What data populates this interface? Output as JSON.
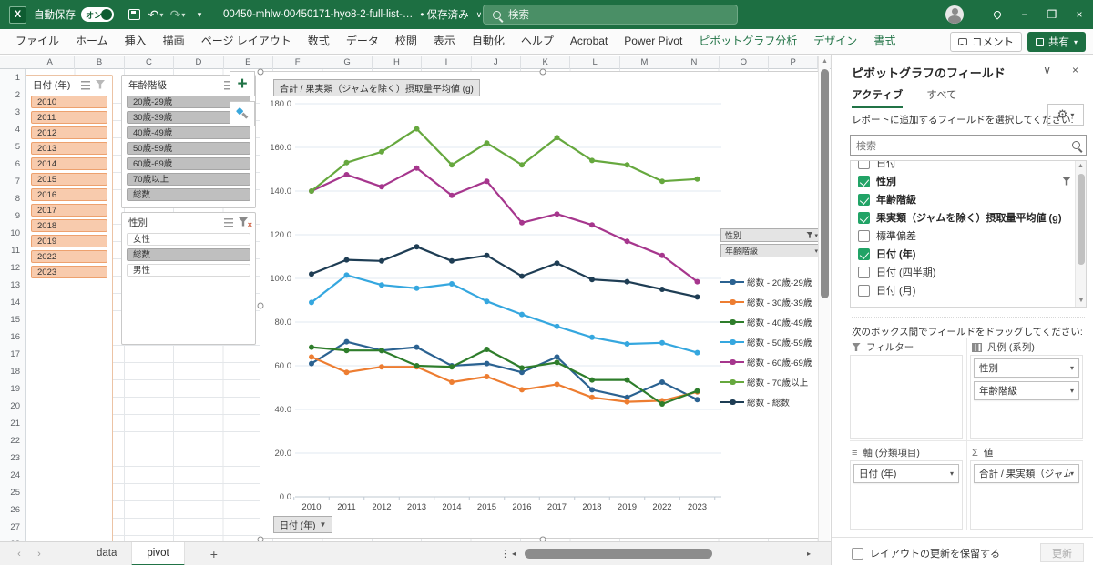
{
  "colors": {
    "titlebar_green": "#1D6F42",
    "contextual_green": "#217346",
    "slicer_selected_peach": "#F8CBAD",
    "slicer_selected_grey": "#BFBFBF",
    "checkbox_green": "#21A366"
  },
  "titlebar": {
    "autosave_label": "自動保存",
    "autosave_state": "オン",
    "filename": "00450-mhlw-00450171-hyo8-2-full-list-…",
    "saved_status": "• 保存済み",
    "search_placeholder": "検索"
  },
  "ribbon": {
    "tabs": [
      "ファイル",
      "ホーム",
      "挿入",
      "描画",
      "ページ レイアウト",
      "数式",
      "データ",
      "校閲",
      "表示",
      "自動化",
      "ヘルプ",
      "Acrobat",
      "Power Pivot"
    ],
    "contextual_tabs": [
      "ピボットグラフ分析",
      "デザイン",
      "書式"
    ],
    "comment_label": "コメント",
    "share_label": "共有"
  },
  "sheet": {
    "columns": [
      "A",
      "B",
      "C",
      "D",
      "E",
      "F",
      "G",
      "H",
      "I",
      "J",
      "K",
      "L",
      "M",
      "N",
      "O",
      "P"
    ],
    "row_count": 28
  },
  "slicers": [
    {
      "title": "日付 (年)",
      "style": "peach",
      "items": [
        {
          "label": "2010",
          "selected": true
        },
        {
          "label": "2011",
          "selected": true
        },
        {
          "label": "2012",
          "selected": true
        },
        {
          "label": "2013",
          "selected": true
        },
        {
          "label": "2014",
          "selected": true
        },
        {
          "label": "2015",
          "selected": true
        },
        {
          "label": "2016",
          "selected": true
        },
        {
          "label": "2017",
          "selected": true
        },
        {
          "label": "2018",
          "selected": true
        },
        {
          "label": "2019",
          "selected": true
        },
        {
          "label": "2022",
          "selected": true
        },
        {
          "label": "2023",
          "selected": true
        }
      ]
    },
    {
      "title": "年齢階級",
      "style": "grey",
      "items": [
        {
          "label": "20歳-29歳",
          "selected": true
        },
        {
          "label": "30歳-39歳",
          "selected": true
        },
        {
          "label": "40歳-49歳",
          "selected": true
        },
        {
          "label": "50歳-59歳",
          "selected": true
        },
        {
          "label": "60歳-69歳",
          "selected": true
        },
        {
          "label": "70歳以上",
          "selected": true
        },
        {
          "label": "総数",
          "selected": true
        }
      ]
    },
    {
      "title": "性別",
      "style": "grey",
      "filtered": true,
      "items": [
        {
          "label": "女性",
          "selected": false
        },
        {
          "label": "総数",
          "selected": true
        },
        {
          "label": "男性",
          "selected": false
        }
      ]
    }
  ],
  "chart": {
    "value_button": "合計 / 果実類（ジャムを除く）摂取量平均値 (g)",
    "axis_button": "日付 (年)",
    "legend_field_buttons": [
      "性別",
      "年齢階級"
    ]
  },
  "chart_data": {
    "type": "line",
    "title": "合計 / 果実類（ジャムを除く）摂取量平均値 (g)",
    "xlabel": "日付 (年)",
    "ylabel": "摂取量平均値 (g)",
    "x": [
      "2010",
      "2011",
      "2012",
      "2013",
      "2014",
      "2015",
      "2016",
      "2017",
      "2018",
      "2019",
      "2022",
      "2023"
    ],
    "ylim": [
      0,
      180
    ],
    "yticks": [
      0,
      20,
      40,
      60,
      80,
      100,
      120,
      140,
      160,
      180
    ],
    "grid": true,
    "legend_position": "right",
    "series": [
      {
        "name": "総数 - 20歳-29歳",
        "color": "#2B6291",
        "values": [
          61,
          71,
          67,
          68.5,
          60,
          61,
          57,
          64,
          49,
          45.5,
          52.5,
          44.5
        ]
      },
      {
        "name": "総数 - 30歳-39歳",
        "color": "#ED7D31",
        "values": [
          64,
          57,
          59.5,
          59.5,
          52.5,
          55,
          49,
          51.5,
          45.5,
          43.5,
          44,
          48
        ]
      },
      {
        "name": "総数 - 40歳-49歳",
        "color": "#2E7D2B",
        "values": [
          68.5,
          67,
          67,
          60,
          59.5,
          67.5,
          59,
          61.5,
          53.5,
          53.5,
          42.5,
          48.5
        ]
      },
      {
        "name": "総数 - 50歳-59歳",
        "color": "#35A7DF",
        "values": [
          89,
          101.5,
          97,
          95.5,
          97.5,
          89.5,
          83.5,
          78,
          73,
          70,
          70.5,
          66
        ]
      },
      {
        "name": "総数 - 60歳-69歳",
        "color": "#A6368D",
        "values": [
          140,
          147.5,
          142,
          150.5,
          138,
          144.5,
          125.5,
          129.5,
          124.5,
          117,
          110.5,
          98.5
        ]
      },
      {
        "name": "総数 - 70歳以上",
        "color": "#66A83E",
        "values": [
          140,
          153,
          158,
          168.5,
          152,
          162,
          152,
          164.5,
          154,
          152,
          144.5,
          145.5
        ]
      },
      {
        "name": "総数 - 総数",
        "color": "#1E3D54",
        "values": [
          102,
          108.5,
          108,
          114.5,
          108,
          110.5,
          101,
          107,
          99.5,
          98.5,
          95,
          91.5
        ]
      }
    ]
  },
  "fields_pane": {
    "title": "ピボットグラフのフィールド",
    "tabs": [
      {
        "label": "アクティブ",
        "active": true
      },
      {
        "label": "すべて",
        "active": false
      }
    ],
    "instruction": "レポートに追加するフィールドを選択してください:",
    "search_placeholder": "検索",
    "fields": [
      {
        "label": "日付",
        "checked": false,
        "clipped": true
      },
      {
        "label": "性別",
        "checked": true,
        "filtered": true
      },
      {
        "label": "年齢階級",
        "checked": true
      },
      {
        "label": "果実類（ジャムを除く）摂取量平均値 (g)",
        "checked": true
      },
      {
        "label": "標準偏差",
        "checked": false
      },
      {
        "label": "日付 (年)",
        "checked": true
      },
      {
        "label": "日付 (四半期)",
        "checked": false
      },
      {
        "label": "日付 (月)",
        "checked": false
      }
    ],
    "drag_instruction": "次のボックス間でフィールドをドラッグしてください:",
    "areas": {
      "filters": {
        "label": "フィルター",
        "items": []
      },
      "legend": {
        "label": "凡例 (系列)",
        "items": [
          "性別",
          "年齢階級"
        ]
      },
      "axis": {
        "label": "軸 (分類項目)",
        "items": [
          "日付 (年)"
        ]
      },
      "values": {
        "label": "値",
        "items": [
          "合計 / 果実類（ジャムを..."
        ]
      }
    },
    "defer_label": "レイアウトの更新を保留する",
    "update_label": "更新"
  },
  "sheet_tabs": {
    "items": [
      {
        "label": "data",
        "active": false
      },
      {
        "label": "pivot",
        "active": true
      }
    ]
  }
}
